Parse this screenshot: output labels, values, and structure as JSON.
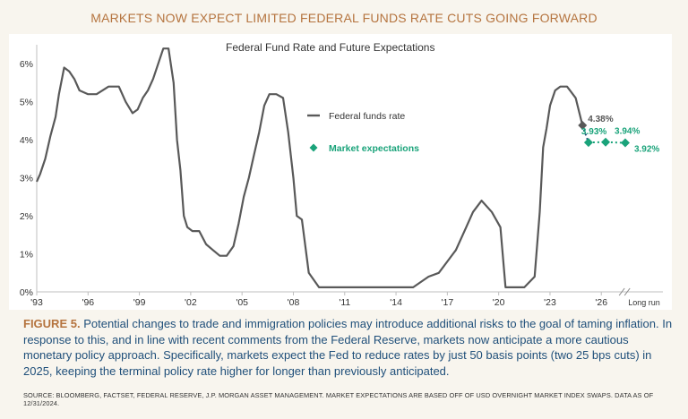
{
  "headline": "MARKETS NOW EXPECT LIMITED FEDERAL FUNDS RATE CUTS GOING FORWARD",
  "figure": {
    "label": "FIGURE 5.",
    "caption": "Potential changes to trade and immigration policies may introduce additional risks to the goal of taming inflation. In response to this, and in line with recent comments from the Federal Reserve, markets now anticipate a more cautious monetary policy approach. Specifically, markets expect the Fed to reduce rates by just 50 basis points (two 25 bps cuts) in 2025, keeping the terminal policy rate higher for longer than previously anticipated."
  },
  "source": "SOURCE: BLOOMBERG, FACTSET, FEDERAL RESERVE, J.P. MORGAN ASSET MANAGEMENT. MARKET EXPECTATIONS ARE BASED OFF OF USD OVERNIGHT MARKET INDEX SWAPS. DATA AS OF 12/31/2024.",
  "colors": {
    "fed_line": "#595959",
    "expectations": "#1aa37a",
    "headline": "#b5743f",
    "caption": "#1f4f7a"
  },
  "chart_data": {
    "type": "line",
    "title": "Federal Fund Rate and Future Expectations",
    "xlim": [
      1993,
      2029.6
    ],
    "ylim": [
      0,
      6.5
    ],
    "y_ticks": [
      0,
      1,
      2,
      3,
      4,
      5,
      6
    ],
    "y_tick_labels": [
      "0%",
      "1%",
      "2%",
      "3%",
      "4%",
      "5%",
      "6%"
    ],
    "x_ticks": [
      1993,
      1996,
      1999,
      2002,
      2005,
      2008,
      2011,
      2014,
      2017,
      2020,
      2023,
      2026
    ],
    "x_tick_labels": [
      "'93",
      "'96",
      "'99",
      "'02",
      "'05",
      "'08",
      "'11",
      "'14",
      "'17",
      "'20",
      "'23",
      "'26"
    ],
    "long_run_label": "Long run",
    "axis_break": true,
    "grid": false,
    "legend": {
      "position": "center-right",
      "fed_label": "Federal funds rate",
      "market_label": "Market expectations"
    },
    "series": [
      {
        "name": "Federal funds rate",
        "x": [
          1993.0,
          1993.2,
          1993.5,
          1993.8,
          1994.1,
          1994.3,
          1994.6,
          1994.9,
          1995.2,
          1995.5,
          1996.0,
          1996.5,
          1997.2,
          1997.8,
          1998.2,
          1998.6,
          1998.9,
          1999.2,
          1999.5,
          1999.8,
          2000.1,
          2000.4,
          2000.7,
          2001.0,
          2001.2,
          2001.4,
          2001.6,
          2001.8,
          2002.1,
          2002.5,
          2002.9,
          2003.3,
          2003.7,
          2004.1,
          2004.5,
          2004.8,
          2005.1,
          2005.4,
          2005.7,
          2006.0,
          2006.3,
          2006.6,
          2007.0,
          2007.4,
          2007.7,
          2008.0,
          2008.2,
          2008.5,
          2008.9,
          2009.5,
          2011.0,
          2013.0,
          2015.0,
          2015.9,
          2016.5,
          2017.0,
          2017.5,
          2018.0,
          2018.5,
          2019.0,
          2019.6,
          2020.1,
          2020.4,
          2020.9,
          2021.5,
          2022.1,
          2022.4,
          2022.6,
          2022.8,
          2023.0,
          2023.3,
          2023.6,
          2024.0,
          2024.5,
          2024.9
        ],
        "y": [
          2.9,
          3.1,
          3.5,
          4.1,
          4.6,
          5.2,
          5.9,
          5.8,
          5.6,
          5.3,
          5.2,
          5.2,
          5.4,
          5.4,
          5.0,
          4.7,
          4.8,
          5.1,
          5.3,
          5.6,
          6.0,
          6.4,
          6.4,
          5.5,
          4.0,
          3.2,
          2.0,
          1.7,
          1.6,
          1.6,
          1.25,
          1.1,
          0.95,
          0.95,
          1.2,
          1.8,
          2.5,
          3.0,
          3.6,
          4.2,
          4.9,
          5.2,
          5.2,
          5.1,
          4.2,
          3.0,
          2.0,
          1.9,
          0.5,
          0.12,
          0.12,
          0.12,
          0.12,
          0.4,
          0.5,
          0.8,
          1.1,
          1.6,
          2.1,
          2.4,
          2.1,
          1.7,
          0.12,
          0.12,
          0.12,
          0.4,
          2.1,
          3.8,
          4.3,
          4.9,
          5.3,
          5.4,
          5.4,
          5.1,
          4.38
        ]
      },
      {
        "name": "Market expectations",
        "x": [
          2025.25,
          2026.25,
          2027.4
        ],
        "y": [
          3.93,
          3.94,
          3.92
        ]
      }
    ],
    "data_labels": [
      {
        "series": "Federal funds rate",
        "x": 2024.9,
        "y": 4.38,
        "text": "4.38%"
      },
      {
        "series": "Market expectations",
        "x": 2025.25,
        "y": 3.93,
        "text": "3.93%"
      },
      {
        "series": "Market expectations",
        "x": 2026.25,
        "y": 3.94,
        "text": "3.94%"
      },
      {
        "series": "Market expectations",
        "x": 2027.4,
        "y": 3.92,
        "text": "3.92%"
      }
    ]
  }
}
